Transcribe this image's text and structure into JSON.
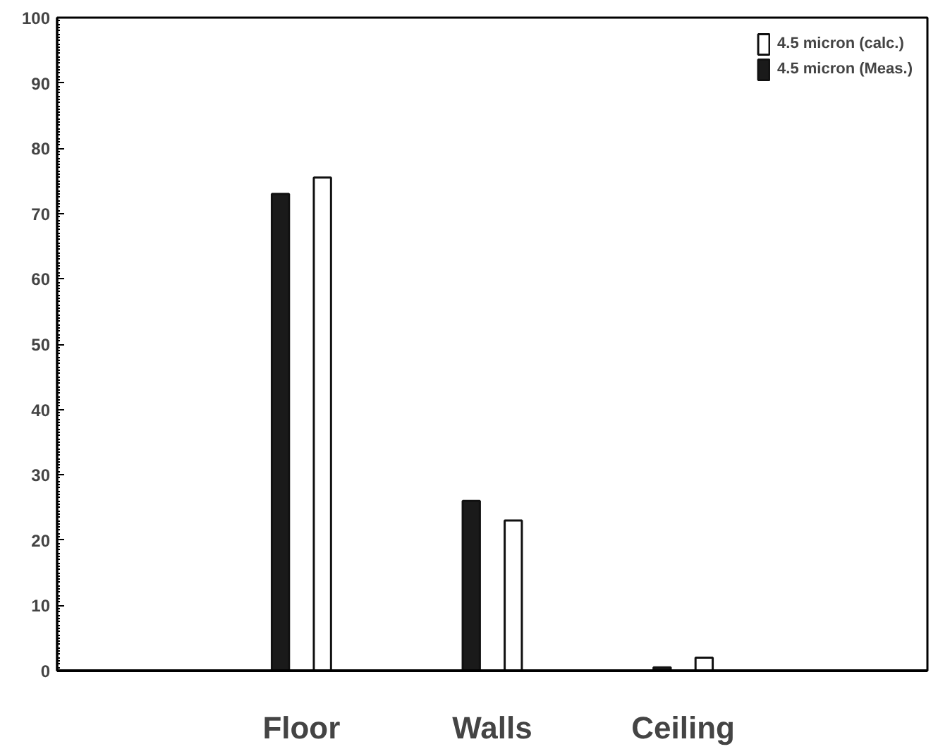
{
  "chart_data": {
    "type": "bar",
    "categories": [
      "Floor",
      "Walls",
      "Ceiling"
    ],
    "series": [
      {
        "name": "4.5 micron (Meas.)",
        "color": "#1a1a1a",
        "values": [
          73,
          26,
          0.5
        ]
      },
      {
        "name": "4.5 micron (calc.)",
        "color": "#ffffff",
        "values": [
          75.5,
          23,
          2
        ]
      }
    ],
    "ylim": [
      0,
      100
    ],
    "yticks": [
      0,
      10,
      20,
      30,
      40,
      50,
      60,
      70,
      80,
      90,
      100
    ],
    "grid": false,
    "legend": "top right"
  }
}
